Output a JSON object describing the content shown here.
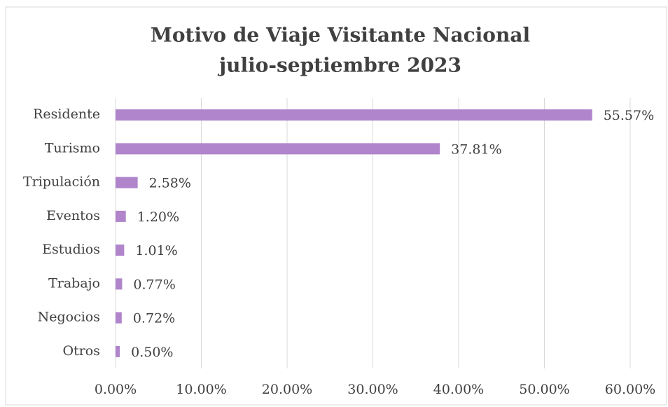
{
  "chart_data": {
    "type": "bar",
    "orientation": "horizontal",
    "title": [
      "Motivo de Viaje Visitante Nacional",
      "julio-septiembre 2023"
    ],
    "categories": [
      "Residente",
      "Turismo",
      "Tripulación",
      "Eventos",
      "Estudios",
      "Trabajo",
      "Negocios",
      "Otros"
    ],
    "values": [
      55.57,
      37.81,
      2.58,
      1.2,
      1.01,
      0.77,
      0.72,
      0.5
    ],
    "value_labels": [
      "55.57%",
      "37.81%",
      "2.58%",
      "1.20%",
      "1.01%",
      "0.77%",
      "0.72%",
      "0.50%"
    ],
    "color": "#b085cb",
    "xlim": [
      0,
      60
    ],
    "xticks": [
      {
        "value": 0,
        "label": "0.00%"
      },
      {
        "value": 10,
        "label": "10.00%"
      },
      {
        "value": 20,
        "label": "20.00%"
      },
      {
        "value": 30,
        "label": "30.00%"
      },
      {
        "value": 40,
        "label": "40.00%"
      },
      {
        "value": 50,
        "label": "50.00%"
      },
      {
        "value": 60,
        "label": "60.00%"
      }
    ],
    "grid": true
  }
}
